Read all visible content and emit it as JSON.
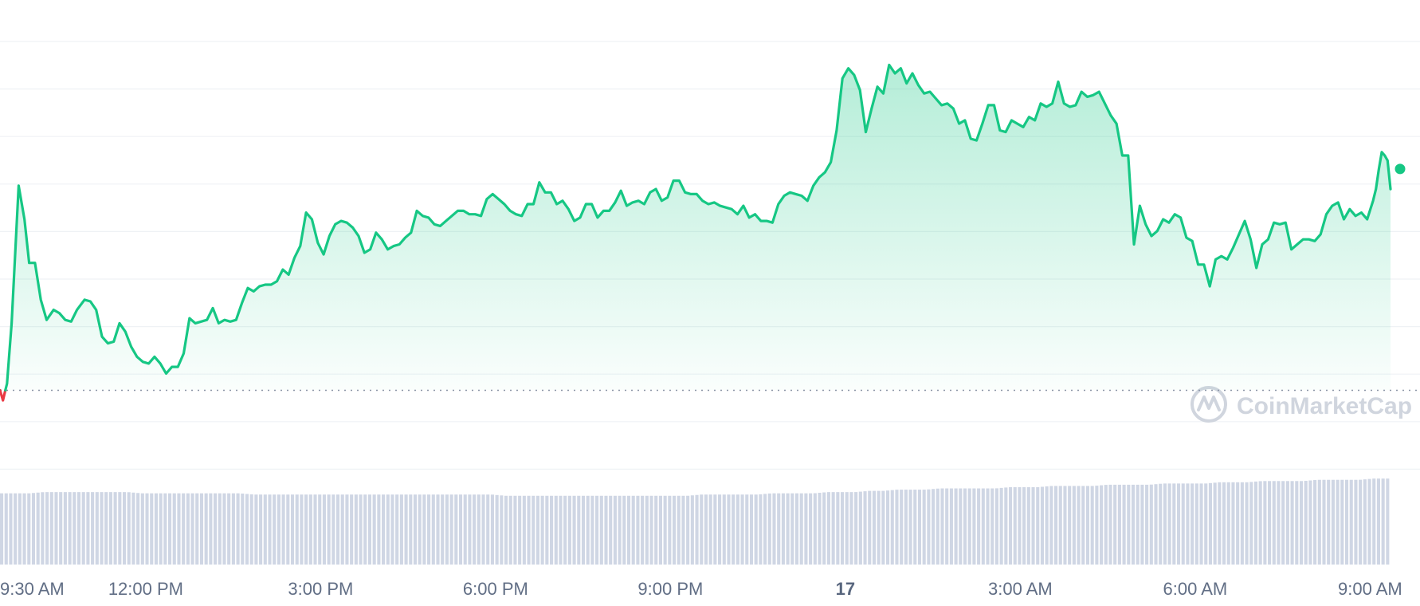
{
  "chart_data": {
    "type": "area",
    "title": "",
    "xlabel": "",
    "ylabel": "",
    "x_ticks": [
      {
        "label": "9:30 AM",
        "hour": 9.5,
        "bold": false
      },
      {
        "label": "12:00 PM",
        "hour": 12,
        "bold": false
      },
      {
        "label": "3:00 PM",
        "hour": 15,
        "bold": false
      },
      {
        "label": "6:00 PM",
        "hour": 18,
        "bold": false
      },
      {
        "label": "9:00 PM",
        "hour": 21,
        "bold": false
      },
      {
        "label": "17",
        "hour": 24,
        "bold": true
      },
      {
        "label": "3:00 AM",
        "hour": 27,
        "bold": false
      },
      {
        "label": "6:00 AM",
        "hour": 30,
        "bold": false
      },
      {
        "label": "9:00 AM",
        "hour": 33,
        "bold": false
      }
    ],
    "xlim": [
      9.5,
      33.35
    ],
    "ylim": [
      -12,
      104
    ],
    "baseline": 0,
    "grid": true,
    "series": [
      {
        "color_up": "#16c784",
        "color_down": "#ea3943",
        "points": [
          [
            9.5,
            0
          ],
          [
            9.55,
            -3
          ],
          [
            9.62,
            2
          ],
          [
            9.7,
            20
          ],
          [
            9.82,
            61
          ],
          [
            9.92,
            51
          ],
          [
            10.0,
            38
          ],
          [
            10.1,
            38
          ],
          [
            10.2,
            27
          ],
          [
            10.3,
            21
          ],
          [
            10.42,
            24
          ],
          [
            10.52,
            23
          ],
          [
            10.62,
            21
          ],
          [
            10.72,
            20.5
          ],
          [
            10.82,
            24
          ],
          [
            10.95,
            27
          ],
          [
            11.05,
            26.5
          ],
          [
            11.15,
            24
          ],
          [
            11.25,
            16
          ],
          [
            11.35,
            14
          ],
          [
            11.45,
            14.5
          ],
          [
            11.55,
            20
          ],
          [
            11.65,
            17.5
          ],
          [
            11.75,
            13
          ],
          [
            11.85,
            10
          ],
          [
            11.95,
            8.5
          ],
          [
            12.05,
            8
          ],
          [
            12.15,
            10
          ],
          [
            12.25,
            8
          ],
          [
            12.35,
            5
          ],
          [
            12.45,
            7
          ],
          [
            12.55,
            7
          ],
          [
            12.65,
            11
          ],
          [
            12.75,
            21.5
          ],
          [
            12.85,
            20
          ],
          [
            12.95,
            20.5
          ],
          [
            13.05,
            21
          ],
          [
            13.15,
            24.5
          ],
          [
            13.25,
            20
          ],
          [
            13.35,
            21
          ],
          [
            13.45,
            20.5
          ],
          [
            13.55,
            21
          ],
          [
            13.65,
            26
          ],
          [
            13.75,
            30.5
          ],
          [
            13.85,
            29.5
          ],
          [
            13.95,
            31
          ],
          [
            14.05,
            31.5
          ],
          [
            14.15,
            31.5
          ],
          [
            14.25,
            32.5
          ],
          [
            14.35,
            36
          ],
          [
            14.45,
            34.5
          ],
          [
            14.55,
            39.5
          ],
          [
            14.65,
            43
          ],
          [
            14.75,
            53
          ],
          [
            14.85,
            51
          ],
          [
            14.95,
            44
          ],
          [
            15.05,
            40.5
          ],
          [
            15.15,
            46
          ],
          [
            15.25,
            49.5
          ],
          [
            15.35,
            50.5
          ],
          [
            15.45,
            50
          ],
          [
            15.55,
            48.5
          ],
          [
            15.65,
            46
          ],
          [
            15.75,
            41
          ],
          [
            15.85,
            42
          ],
          [
            15.95,
            47
          ],
          [
            16.05,
            45
          ],
          [
            16.15,
            42
          ],
          [
            16.25,
            43
          ],
          [
            16.35,
            43.5
          ],
          [
            16.45,
            45.5
          ],
          [
            16.55,
            47
          ],
          [
            16.65,
            53.5
          ],
          [
            16.75,
            52
          ],
          [
            16.85,
            51.5
          ],
          [
            16.95,
            49.5
          ],
          [
            17.05,
            49
          ],
          [
            17.15,
            50.5
          ],
          [
            17.25,
            52
          ],
          [
            17.35,
            53.5
          ],
          [
            17.45,
            53.5
          ],
          [
            17.55,
            52.5
          ],
          [
            17.65,
            52.5
          ],
          [
            17.75,
            52
          ],
          [
            17.85,
            57
          ],
          [
            17.95,
            58.5
          ],
          [
            18.05,
            57
          ],
          [
            18.15,
            55.5
          ],
          [
            18.25,
            53.5
          ],
          [
            18.35,
            52.5
          ],
          [
            18.45,
            52
          ],
          [
            18.55,
            55.5
          ],
          [
            18.65,
            55.5
          ],
          [
            18.75,
            62
          ],
          [
            18.85,
            59
          ],
          [
            18.95,
            59
          ],
          [
            19.05,
            55.5
          ],
          [
            19.15,
            56.5
          ],
          [
            19.25,
            54
          ],
          [
            19.35,
            50.5
          ],
          [
            19.45,
            51.5
          ],
          [
            19.55,
            55.5
          ],
          [
            19.65,
            55.5
          ],
          [
            19.75,
            51.5
          ],
          [
            19.85,
            53.5
          ],
          [
            19.95,
            53.5
          ],
          [
            20.05,
            56
          ],
          [
            20.15,
            59.5
          ],
          [
            20.25,
            55
          ],
          [
            20.35,
            56
          ],
          [
            20.45,
            56.5
          ],
          [
            20.55,
            55.5
          ],
          [
            20.65,
            59
          ],
          [
            20.75,
            60
          ],
          [
            20.85,
            56.5
          ],
          [
            20.95,
            57.5
          ],
          [
            21.05,
            62.5
          ],
          [
            21.15,
            62.5
          ],
          [
            21.25,
            59
          ],
          [
            21.35,
            58.5
          ],
          [
            21.45,
            58.5
          ],
          [
            21.55,
            56.5
          ],
          [
            21.65,
            55.5
          ],
          [
            21.75,
            56
          ],
          [
            21.85,
            55
          ],
          [
            21.95,
            54.5
          ],
          [
            22.05,
            54
          ],
          [
            22.15,
            52.5
          ],
          [
            22.25,
            55
          ],
          [
            22.35,
            51.5
          ],
          [
            22.45,
            52.5
          ],
          [
            22.55,
            50.5
          ],
          [
            22.65,
            50.5
          ],
          [
            22.75,
            50
          ],
          [
            22.85,
            55.5
          ],
          [
            22.95,
            58
          ],
          [
            23.05,
            59
          ],
          [
            23.15,
            58.5
          ],
          [
            23.25,
            58
          ],
          [
            23.35,
            56.5
          ],
          [
            23.45,
            61
          ],
          [
            23.55,
            63.5
          ],
          [
            23.65,
            65
          ],
          [
            23.75,
            68
          ],
          [
            23.85,
            77.5
          ],
          [
            23.95,
            93
          ],
          [
            24.05,
            96
          ],
          [
            24.15,
            94
          ],
          [
            24.25,
            89.5
          ],
          [
            24.35,
            77
          ],
          [
            24.45,
            84
          ],
          [
            24.55,
            90.5
          ],
          [
            24.65,
            88.5
          ],
          [
            24.75,
            97
          ],
          [
            24.85,
            94.5
          ],
          [
            24.95,
            96
          ],
          [
            25.05,
            91.5
          ],
          [
            25.15,
            94.5
          ],
          [
            25.25,
            91
          ],
          [
            25.35,
            88.5
          ],
          [
            25.45,
            89
          ],
          [
            25.55,
            87
          ],
          [
            25.65,
            85
          ],
          [
            25.75,
            85.5
          ],
          [
            25.85,
            84
          ],
          [
            25.95,
            79.5
          ],
          [
            26.05,
            80.5
          ],
          [
            26.15,
            75
          ],
          [
            26.25,
            74.5
          ],
          [
            26.35,
            79.5
          ],
          [
            26.45,
            85
          ],
          [
            26.55,
            85
          ],
          [
            26.65,
            77.5
          ],
          [
            26.75,
            77
          ],
          [
            26.85,
            80.5
          ],
          [
            26.95,
            79.5
          ],
          [
            27.05,
            78.5
          ],
          [
            27.15,
            81.5
          ],
          [
            27.25,
            80.5
          ],
          [
            27.35,
            85.5
          ],
          [
            27.45,
            84.5
          ],
          [
            27.55,
            85.5
          ],
          [
            27.65,
            92
          ],
          [
            27.75,
            85.5
          ],
          [
            27.85,
            84.5
          ],
          [
            27.95,
            85
          ],
          [
            28.05,
            89
          ],
          [
            28.15,
            87.5
          ],
          [
            28.25,
            88
          ],
          [
            28.35,
            89
          ],
          [
            28.45,
            85.5
          ],
          [
            28.55,
            82
          ],
          [
            28.65,
            79.5
          ],
          [
            28.75,
            70
          ],
          [
            28.85,
            70
          ],
          [
            28.95,
            43.5
          ],
          [
            29.05,
            55
          ],
          [
            29.15,
            49.5
          ],
          [
            29.25,
            46
          ],
          [
            29.35,
            47.5
          ],
          [
            29.45,
            51
          ],
          [
            29.55,
            50
          ],
          [
            29.65,
            52.5
          ],
          [
            29.75,
            51.5
          ],
          [
            29.85,
            45.5
          ],
          [
            29.95,
            44.5
          ],
          [
            30.05,
            37.5
          ],
          [
            30.15,
            37.5
          ],
          [
            30.25,
            31
          ],
          [
            30.35,
            39
          ],
          [
            30.45,
            40
          ],
          [
            30.55,
            39
          ],
          [
            30.65,
            42.5
          ],
          [
            30.75,
            46.5
          ],
          [
            30.85,
            50.5
          ],
          [
            30.95,
            45
          ],
          [
            31.05,
            36.5
          ],
          [
            31.15,
            43.5
          ],
          [
            31.25,
            45
          ],
          [
            31.35,
            50
          ],
          [
            31.45,
            49.5
          ],
          [
            31.55,
            50
          ],
          [
            31.65,
            42
          ],
          [
            31.75,
            43.5
          ],
          [
            31.85,
            45
          ],
          [
            31.95,
            45
          ],
          [
            32.05,
            44.5
          ],
          [
            32.15,
            46.5
          ],
          [
            32.25,
            52.5
          ],
          [
            32.35,
            55
          ],
          [
            32.45,
            56
          ],
          [
            32.55,
            51
          ],
          [
            32.65,
            54
          ],
          [
            32.75,
            52
          ],
          [
            32.85,
            53
          ],
          [
            32.95,
            51
          ],
          [
            33.05,
            56.5
          ],
          [
            33.1,
            60
          ],
          [
            33.15,
            66
          ],
          [
            33.2,
            71
          ],
          [
            33.25,
            70
          ],
          [
            33.3,
            68.5
          ],
          [
            33.35,
            60
          ]
        ]
      }
    ],
    "volume": [
      58,
      58,
      58,
      59,
      59,
      59,
      59,
      59,
      59,
      59,
      58,
      58,
      58,
      58,
      58,
      58,
      58,
      58,
      57,
      57,
      57,
      57,
      57,
      57,
      57,
      57,
      57,
      57,
      57,
      57,
      57,
      57,
      57,
      57,
      57,
      57,
      56,
      56,
      56,
      56,
      56,
      56,
      56,
      56,
      56,
      56,
      56,
      56,
      56,
      56,
      57,
      57,
      57,
      57,
      57,
      58,
      58,
      58,
      58,
      59,
      59,
      59,
      60,
      60,
      61,
      61,
      61,
      62,
      62,
      62,
      62,
      62,
      63,
      63,
      63,
      64,
      64,
      64,
      64,
      65,
      65,
      65,
      65,
      66,
      66,
      66,
      66,
      67,
      67,
      67,
      68,
      68,
      68,
      68,
      69,
      69,
      69,
      69,
      70,
      70
    ],
    "volume_max": 100,
    "watermark": "CoinMarketCap"
  }
}
